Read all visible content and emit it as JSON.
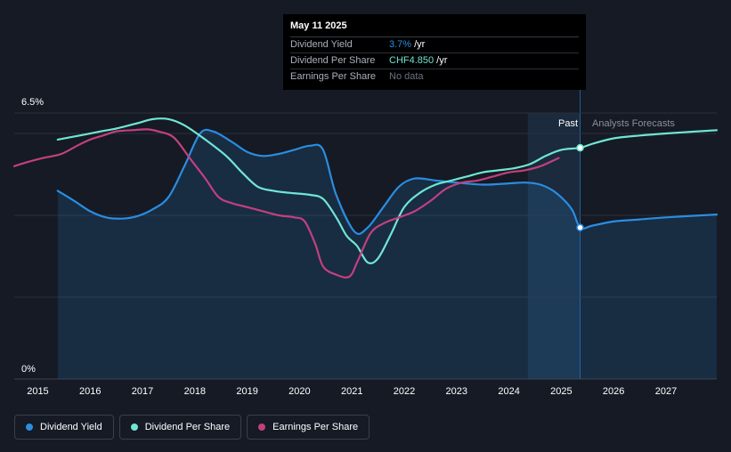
{
  "colors": {
    "dividend_yield": "#2a8de0",
    "dividend_per_share": "#6fe6d4",
    "earnings_per_share": "#c2407e",
    "no_data": "#6b7280",
    "tooltip_label": "#aab0bb"
  },
  "tooltip": {
    "date": "May 11 2025",
    "rows": [
      {
        "name": "Dividend Yield",
        "value": "3.7%",
        "unit": "/yr"
      },
      {
        "name": "Dividend Per Share",
        "value": "CHF4.850",
        "unit": "/yr"
      },
      {
        "name": "Earnings Per Share",
        "value": "No data",
        "unit": ""
      }
    ]
  },
  "regions": {
    "past": "Past",
    "forecast": "Analysts Forecasts"
  },
  "legend": [
    {
      "name": "Dividend Yield",
      "color": "#2a8de0"
    },
    {
      "name": "Dividend Per Share",
      "color": "#6fe6d4"
    },
    {
      "name": "Earnings Per Share",
      "color": "#c2407e"
    }
  ],
  "chart_data": {
    "type": "line",
    "y_axis": {
      "min": 0,
      "max": 6.5,
      "tick_labels": [
        "6.5%",
        "0%"
      ],
      "unit": "%"
    },
    "x_axis": {
      "min": 2014.55,
      "max": 2027.97,
      "ticks": [
        2015,
        2016,
        2017,
        2018,
        2019,
        2020,
        2021,
        2022,
        2023,
        2024,
        2025,
        2026,
        2027
      ]
    },
    "past_end": 2025.36,
    "highlight_start": 2024.36,
    "marker_x": 2025.36,
    "grid": true,
    "series": [
      {
        "name": "Dividend Yield",
        "key": "dividend_yield",
        "area": true,
        "points": [
          [
            2015.38,
            4.6
          ],
          [
            2015.7,
            4.35
          ],
          [
            2016.0,
            4.1
          ],
          [
            2016.3,
            3.95
          ],
          [
            2016.6,
            3.92
          ],
          [
            2016.9,
            3.98
          ],
          [
            2017.2,
            4.15
          ],
          [
            2017.5,
            4.45
          ],
          [
            2017.8,
            5.2
          ],
          [
            2018.1,
            6.0
          ],
          [
            2018.35,
            6.05
          ],
          [
            2018.7,
            5.8
          ],
          [
            2019.0,
            5.55
          ],
          [
            2019.3,
            5.45
          ],
          [
            2019.6,
            5.5
          ],
          [
            2019.9,
            5.6
          ],
          [
            2020.2,
            5.7
          ],
          [
            2020.45,
            5.6
          ],
          [
            2020.7,
            4.5
          ],
          [
            2021.05,
            3.6
          ],
          [
            2021.3,
            3.7
          ],
          [
            2021.6,
            4.2
          ],
          [
            2021.9,
            4.7
          ],
          [
            2022.2,
            4.9
          ],
          [
            2022.6,
            4.85
          ],
          [
            2023.0,
            4.8
          ],
          [
            2023.5,
            4.75
          ],
          [
            2024.0,
            4.78
          ],
          [
            2024.3,
            4.8
          ],
          [
            2024.6,
            4.75
          ],
          [
            2024.9,
            4.55
          ],
          [
            2025.2,
            4.15
          ],
          [
            2025.36,
            3.7
          ],
          [
            2025.6,
            3.75
          ],
          [
            2026.0,
            3.85
          ],
          [
            2026.5,
            3.9
          ],
          [
            2027.0,
            3.95
          ],
          [
            2027.97,
            4.02
          ]
        ]
      },
      {
        "name": "Dividend Per Share",
        "key": "dividend_per_share",
        "area": false,
        "points": [
          [
            2015.38,
            5.85
          ],
          [
            2015.8,
            5.95
          ],
          [
            2016.2,
            6.05
          ],
          [
            2016.5,
            6.12
          ],
          [
            2016.9,
            6.25
          ],
          [
            2017.2,
            6.35
          ],
          [
            2017.5,
            6.35
          ],
          [
            2017.8,
            6.2
          ],
          [
            2018.2,
            5.85
          ],
          [
            2018.6,
            5.45
          ],
          [
            2018.9,
            5.05
          ],
          [
            2019.2,
            4.7
          ],
          [
            2019.5,
            4.6
          ],
          [
            2019.8,
            4.55
          ],
          [
            2020.2,
            4.5
          ],
          [
            2020.45,
            4.4
          ],
          [
            2020.7,
            3.95
          ],
          [
            2020.9,
            3.5
          ],
          [
            2021.1,
            3.25
          ],
          [
            2021.3,
            2.85
          ],
          [
            2021.5,
            2.95
          ],
          [
            2021.75,
            3.55
          ],
          [
            2022.0,
            4.2
          ],
          [
            2022.3,
            4.55
          ],
          [
            2022.6,
            4.75
          ],
          [
            2022.9,
            4.85
          ],
          [
            2023.2,
            4.95
          ],
          [
            2023.5,
            5.05
          ],
          [
            2023.8,
            5.1
          ],
          [
            2024.1,
            5.15
          ],
          [
            2024.4,
            5.25
          ],
          [
            2024.7,
            5.45
          ],
          [
            2025.0,
            5.6
          ],
          [
            2025.36,
            5.65
          ],
          [
            2025.6,
            5.75
          ],
          [
            2026.0,
            5.88
          ],
          [
            2026.5,
            5.95
          ],
          [
            2027.0,
            6.0
          ],
          [
            2027.97,
            6.08
          ]
        ]
      },
      {
        "name": "Earnings Per Share",
        "key": "earnings_per_share",
        "area": false,
        "points": [
          [
            2014.55,
            5.2
          ],
          [
            2014.8,
            5.3
          ],
          [
            2015.1,
            5.4
          ],
          [
            2015.45,
            5.5
          ],
          [
            2015.75,
            5.7
          ],
          [
            2016.0,
            5.85
          ],
          [
            2016.25,
            5.95
          ],
          [
            2016.5,
            6.05
          ],
          [
            2016.8,
            6.08
          ],
          [
            2017.1,
            6.1
          ],
          [
            2017.3,
            6.05
          ],
          [
            2017.6,
            5.9
          ],
          [
            2017.9,
            5.4
          ],
          [
            2018.2,
            4.9
          ],
          [
            2018.45,
            4.45
          ],
          [
            2018.7,
            4.3
          ],
          [
            2019.0,
            4.2
          ],
          [
            2019.3,
            4.1
          ],
          [
            2019.6,
            4.0
          ],
          [
            2019.9,
            3.95
          ],
          [
            2020.1,
            3.85
          ],
          [
            2020.3,
            3.3
          ],
          [
            2020.45,
            2.75
          ],
          [
            2020.7,
            2.55
          ],
          [
            2020.95,
            2.5
          ],
          [
            2021.1,
            2.85
          ],
          [
            2021.35,
            3.55
          ],
          [
            2021.6,
            3.8
          ],
          [
            2021.9,
            3.95
          ],
          [
            2022.2,
            4.1
          ],
          [
            2022.5,
            4.35
          ],
          [
            2022.8,
            4.65
          ],
          [
            2023.1,
            4.8
          ],
          [
            2023.4,
            4.85
          ],
          [
            2023.7,
            4.95
          ],
          [
            2024.0,
            5.05
          ],
          [
            2024.3,
            5.1
          ],
          [
            2024.6,
            5.2
          ],
          [
            2024.95,
            5.4
          ]
        ]
      }
    ]
  }
}
